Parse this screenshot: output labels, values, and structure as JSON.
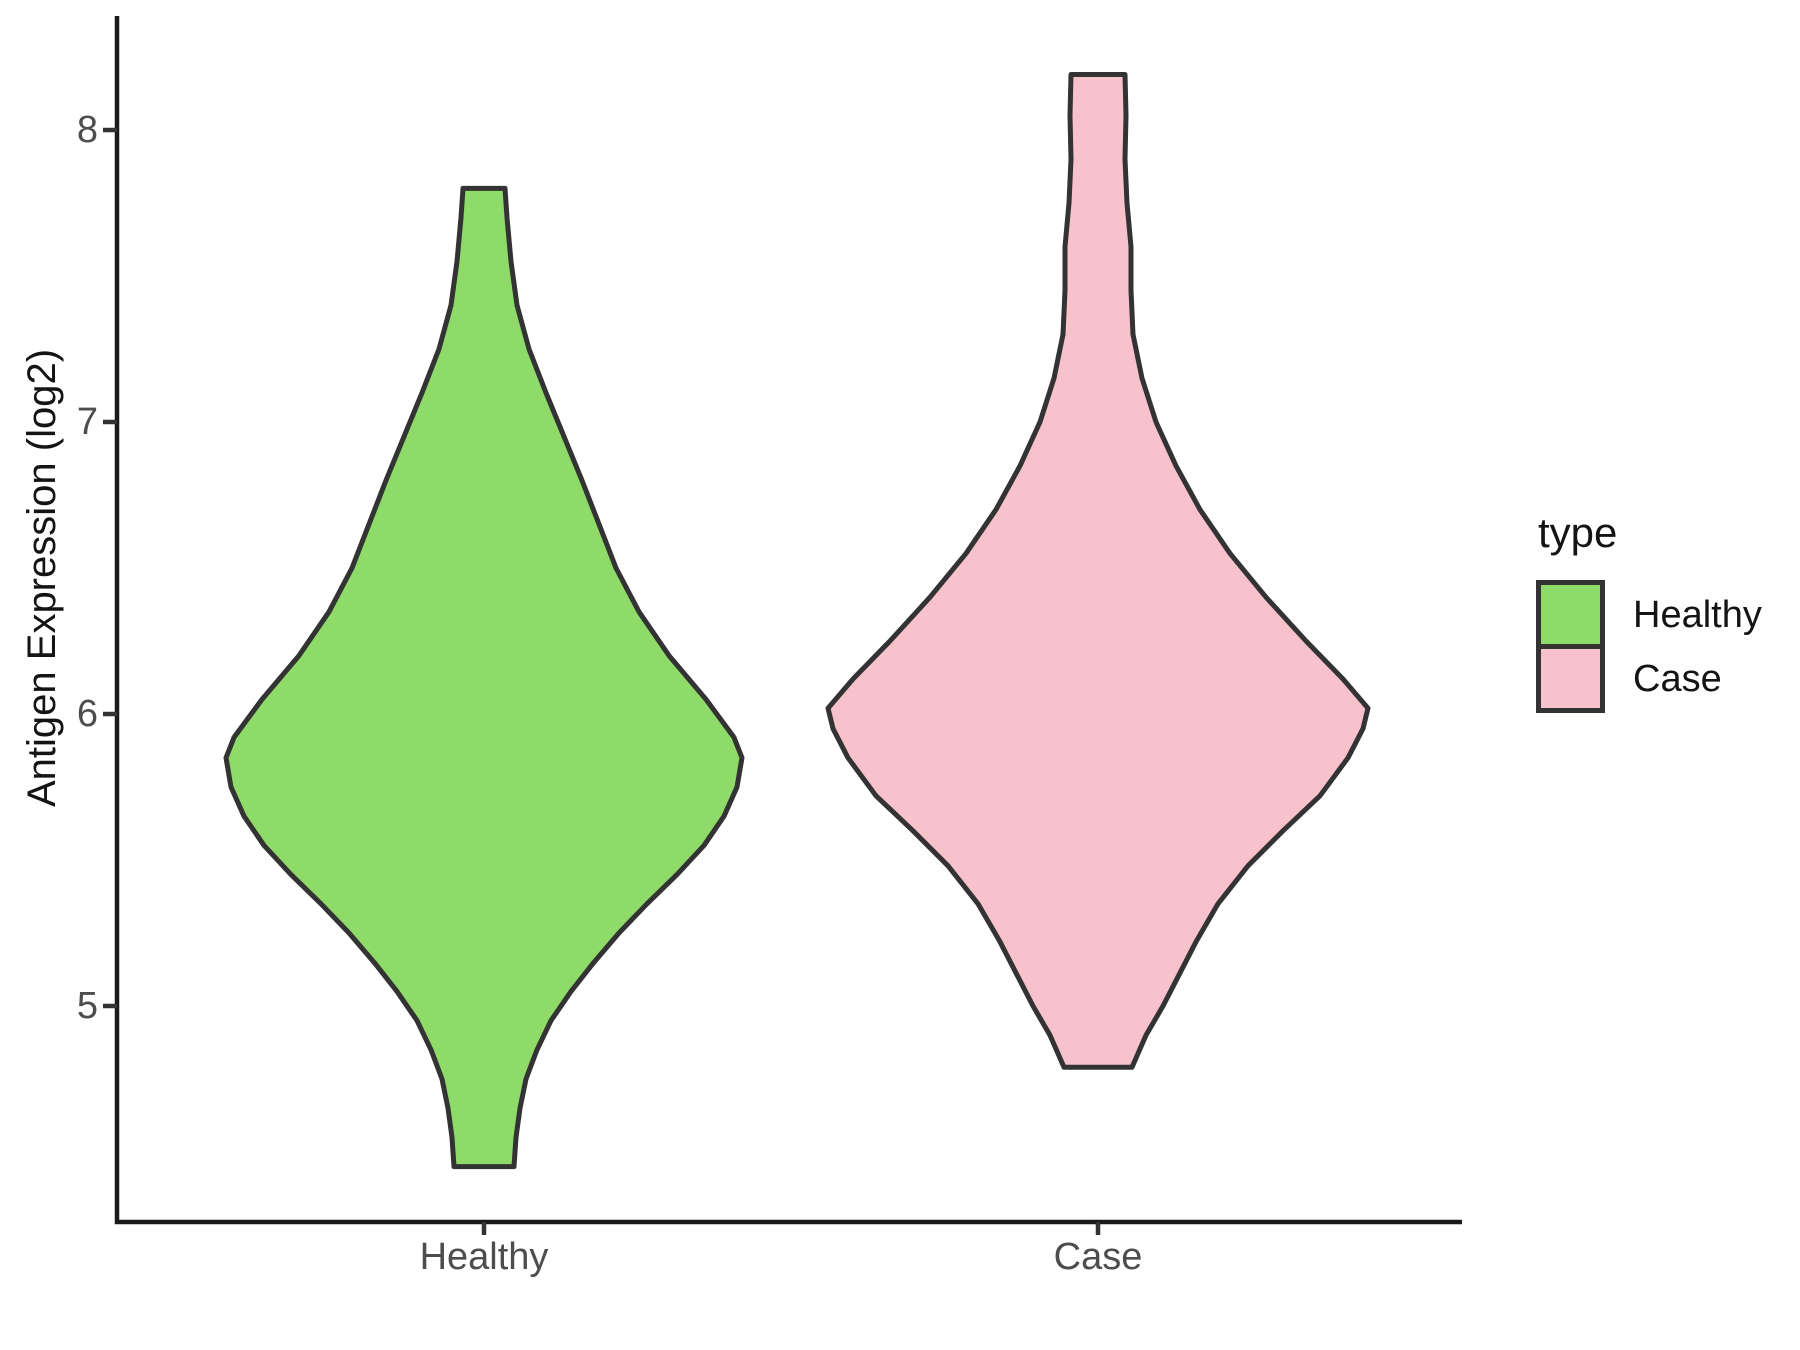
{
  "figure": {
    "background": "#ffffff",
    "axis_line_color": "#1a1a1a",
    "tick_color": "#333333",
    "tick_label_color": "#4d4d4d",
    "text_color": "#141414"
  },
  "chart_data": {
    "type": "violin",
    "title": "",
    "xlabel": "",
    "ylabel": "Antigen Expression (log2)",
    "categories": [
      "Healthy",
      "Case"
    ],
    "y_ticks": [
      8,
      7,
      6,
      5
    ],
    "ylim": [
      4.3,
      8.35
    ],
    "grid": "off",
    "series": [
      {
        "name": "Healthy",
        "fill": "#8edb69",
        "outline": "#333333",
        "y_min": 4.45,
        "y_max": 7.8,
        "peak_density_at": 5.85,
        "profile": [
          [
            7.8,
            21
          ],
          [
            7.7,
            23
          ],
          [
            7.55,
            27
          ],
          [
            7.4,
            33
          ],
          [
            7.25,
            45
          ],
          [
            7.1,
            62
          ],
          [
            6.95,
            80
          ],
          [
            6.8,
            98
          ],
          [
            6.65,
            115
          ],
          [
            6.5,
            132
          ],
          [
            6.35,
            155
          ],
          [
            6.2,
            185
          ],
          [
            6.05,
            222
          ],
          [
            5.92,
            250
          ],
          [
            5.85,
            258
          ],
          [
            5.75,
            253
          ],
          [
            5.65,
            240
          ],
          [
            5.55,
            220
          ],
          [
            5.45,
            193
          ],
          [
            5.35,
            163
          ],
          [
            5.25,
            135
          ],
          [
            5.15,
            110
          ],
          [
            5.05,
            87
          ],
          [
            4.95,
            67
          ],
          [
            4.85,
            53
          ],
          [
            4.75,
            42
          ],
          [
            4.65,
            36
          ],
          [
            4.55,
            32
          ],
          [
            4.45,
            30
          ]
        ]
      },
      {
        "name": "Case",
        "fill": "#f8c2cd",
        "outline": "#333333",
        "y_min": 4.79,
        "y_max": 8.19,
        "peak_density_at": 6.02,
        "profile": [
          [
            8.19,
            27
          ],
          [
            8.05,
            28
          ],
          [
            7.9,
            27
          ],
          [
            7.75,
            29
          ],
          [
            7.6,
            33
          ],
          [
            7.45,
            33
          ],
          [
            7.3,
            35
          ],
          [
            7.15,
            44
          ],
          [
            7.0,
            58
          ],
          [
            6.85,
            78
          ],
          [
            6.7,
            102
          ],
          [
            6.55,
            132
          ],
          [
            6.4,
            168
          ],
          [
            6.25,
            208
          ],
          [
            6.12,
            245
          ],
          [
            6.02,
            270
          ],
          [
            5.95,
            265
          ],
          [
            5.85,
            250
          ],
          [
            5.72,
            222
          ],
          [
            5.6,
            185
          ],
          [
            5.48,
            150
          ],
          [
            5.35,
            120
          ],
          [
            5.22,
            98
          ],
          [
            5.1,
            80
          ],
          [
            5.0,
            65
          ],
          [
            4.9,
            48
          ],
          [
            4.79,
            34
          ]
        ]
      }
    ],
    "legend": {
      "title": "type",
      "position": "right",
      "entries": [
        {
          "label": "Healthy",
          "color": "#8edb69"
        },
        {
          "label": "Case",
          "color": "#f8c2cd"
        }
      ]
    }
  }
}
